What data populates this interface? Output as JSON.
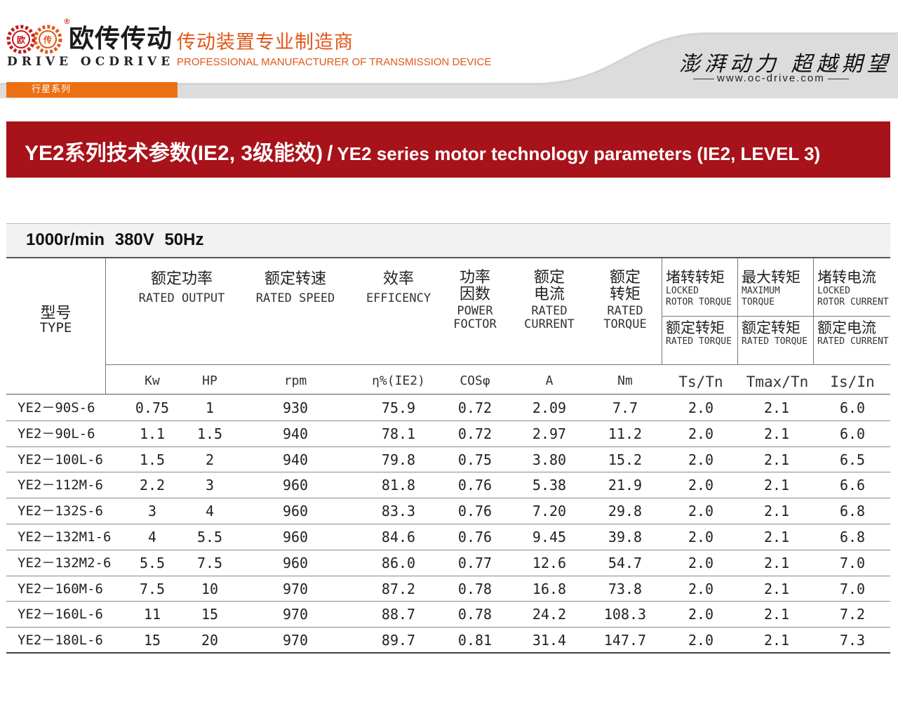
{
  "header": {
    "logo_cn": "欧传传动",
    "logo_en": "DRIVE OCDRIVE",
    "tagline_cn": "传动装置专业制造商",
    "tagline_en": "PROFESSIONAL MANUFACTURER OF TRANSMISSION DEVICE",
    "series_label": "行星系列",
    "slogan": "澎湃动力 超越期望",
    "website": "www.oc-drive.com",
    "colors": {
      "orange": "#ec6f14",
      "red_banner": "#a8121a"
    }
  },
  "banner": {
    "title_cn": "YE2系列技术参数(IE2, 3级能效)",
    "separator": "/",
    "title_en": "YE2 series motor technology parameters (IE2, LEVEL 3)"
  },
  "spec": {
    "text": "1000r/min   380V  50Hz"
  },
  "table": {
    "type_header": {
      "cn": "型号",
      "en": "TYPE"
    },
    "headers": {
      "output": {
        "cn": "额定功率",
        "en": "RATED OUTPUT"
      },
      "speed": {
        "cn": "额定转速",
        "en": "RATED SPEED"
      },
      "efficiency": {
        "cn": "效率",
        "en": "EFFICENCY"
      },
      "pf": {
        "cn1": "功率",
        "cn2": "因数",
        "en1": "POWER",
        "en2": "FOCTOR"
      },
      "current": {
        "cn1": "额定",
        "cn2": "电流",
        "en1": "RATED",
        "en2": "CURRENT"
      },
      "torque": {
        "cn1": "额定",
        "cn2": "转矩",
        "en1": "RATED",
        "en2": "TORQUE"
      },
      "locked_torque": {
        "cn": "堵转转矩",
        "en1": "LOCKED",
        "en2": "ROTOR TORQUE",
        "sub_cn": "额定转矩",
        "sub_en": "RATED TORQUE"
      },
      "max_torque": {
        "cn": "最大转矩",
        "en1": "MAXIMUM",
        "en2": "TORQUE",
        "sub_cn": "额定转矩",
        "sub_en": "RATED TORQUE"
      },
      "locked_current": {
        "cn": "堵转电流",
        "en1": "LOCKED",
        "en2": "ROTOR CURRENT",
        "sub_cn": "额定电流",
        "sub_en": "RATED CURRENT"
      }
    },
    "units": [
      "Kw",
      "HP",
      "rpm",
      "η%(IE2)",
      "COSφ",
      "A",
      "Nm",
      "Ts/Tn",
      "Tmax/Tn",
      "Is/In"
    ],
    "rows": [
      [
        "YE2－90S-6",
        "0.75",
        "1",
        "930",
        "75.9",
        "0.72",
        "2.09",
        "7.7",
        "2.0",
        "2.1",
        "6.0"
      ],
      [
        "YE2－90L-6",
        "1.1",
        "1.5",
        "940",
        "78.1",
        "0.72",
        "2.97",
        "11.2",
        "2.0",
        "2.1",
        "6.0"
      ],
      [
        "YE2－100L-6",
        "1.5",
        "2",
        "940",
        "79.8",
        "0.75",
        "3.80",
        "15.2",
        "2.0",
        "2.1",
        "6.5"
      ],
      [
        "YE2－112M-6",
        "2.2",
        "3",
        "960",
        "81.8",
        "0.76",
        "5.38",
        "21.9",
        "2.0",
        "2.1",
        "6.6"
      ],
      [
        "YE2－132S-6",
        "3",
        "4",
        "960",
        "83.3",
        "0.76",
        "7.20",
        "29.8",
        "2.0",
        "2.1",
        "6.8"
      ],
      [
        "YE2－132M1-6",
        "4",
        "5.5",
        "960",
        "84.6",
        "0.76",
        "9.45",
        "39.8",
        "2.0",
        "2.1",
        "6.8"
      ],
      [
        "YE2－132M2-6",
        "5.5",
        "7.5",
        "960",
        "86.0",
        "0.77",
        "12.6",
        "54.7",
        "2.0",
        "2.1",
        "7.0"
      ],
      [
        "YE2－160M-6",
        "7.5",
        "10",
        "970",
        "87.2",
        "0.78",
        "16.8",
        "73.8",
        "2.0",
        "2.1",
        "7.0"
      ],
      [
        "YE2－160L-6",
        "11",
        "15",
        "970",
        "88.7",
        "0.78",
        "24.2",
        "108.3",
        "2.0",
        "2.1",
        "7.2"
      ],
      [
        "YE2－180L-6",
        "15",
        "20",
        "970",
        "89.7",
        "0.81",
        "31.4",
        "147.7",
        "2.0",
        "2.1",
        "7.3"
      ]
    ]
  }
}
